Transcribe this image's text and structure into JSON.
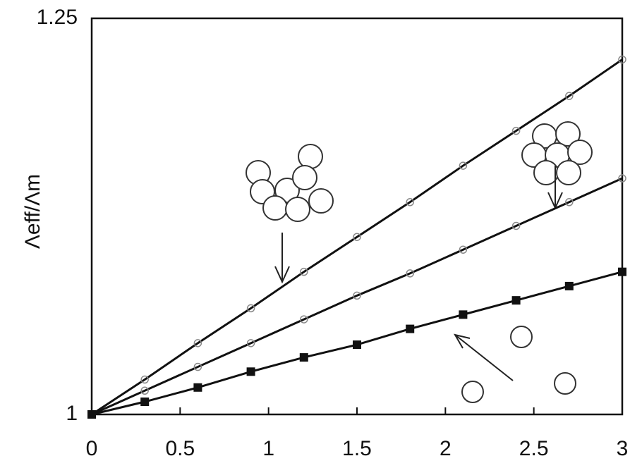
{
  "chart_data": {
    "type": "line",
    "y_label": "Λeff/Λm",
    "x": [
      0,
      0.3,
      0.6,
      0.9,
      1.2,
      1.5,
      1.8,
      2.1,
      2.4,
      2.7,
      3.0
    ],
    "series": [
      {
        "color": "#111111",
        "marker": "open-circle",
        "values": [
          1,
          1.022,
          1.045,
          1.067,
          1.09,
          1.112,
          1.134,
          1.157,
          1.179,
          1.201,
          1.224
        ]
      },
      {
        "color": "#111111",
        "marker": "open-circle",
        "values": [
          1,
          1.015,
          1.03,
          1.045,
          1.06,
          1.075,
          1.089,
          1.104,
          1.119,
          1.134,
          1.149
        ]
      },
      {
        "color": "#111111",
        "marker": "filled-square",
        "values": [
          1,
          1.008,
          1.017,
          1.027,
          1.036,
          1.044,
          1.054,
          1.063,
          1.072,
          1.081,
          1.09
        ]
      }
    ],
    "xlim": [
      0,
      3
    ],
    "ylim": [
      1,
      1.25
    ],
    "xticks": [
      0,
      0.5,
      1,
      1.5,
      2,
      2.5,
      3
    ],
    "yticks": [
      1,
      1.25
    ],
    "grid": false
  }
}
